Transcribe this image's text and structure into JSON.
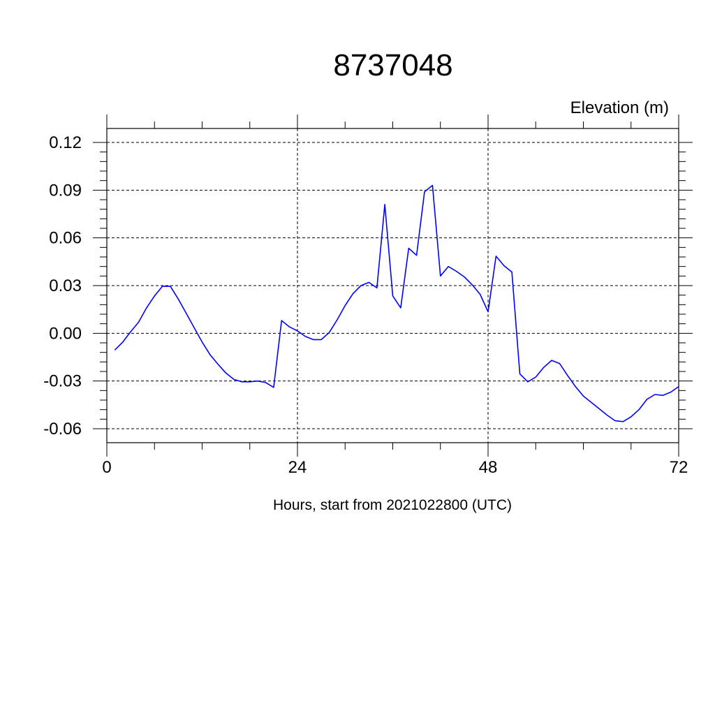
{
  "chart_data": {
    "type": "line",
    "title": "8737048",
    "subtitle": "Elevation (m)",
    "xlabel": "Hours, start from 2021022800 (UTC)",
    "ylabel": "",
    "xlim": [
      0,
      72
    ],
    "ylim": [
      -0.06,
      0.12
    ],
    "x_ticks": [
      0,
      24,
      48,
      72
    ],
    "x_tick_labels": [
      "0",
      "24",
      "48",
      "72"
    ],
    "y_ticks": [
      -0.06,
      -0.03,
      0.0,
      0.03,
      0.06,
      0.09,
      0.12
    ],
    "y_tick_labels": [
      "-0.06",
      "-0.03",
      "0.00",
      "0.03",
      "0.06",
      "0.09",
      "0.12"
    ],
    "grid": true,
    "line_color": "#0000ff",
    "series": [
      {
        "x": [
          1,
          2,
          3,
          4,
          5,
          6,
          7,
          8,
          9,
          10,
          11,
          12,
          13,
          14,
          15,
          16,
          17,
          18,
          19,
          20,
          21,
          22,
          23,
          24,
          25,
          26,
          27,
          28,
          29,
          30,
          31,
          32,
          33,
          34,
          35,
          36,
          37,
          38,
          39,
          40,
          41,
          42,
          43,
          44,
          45,
          46,
          47,
          48,
          49,
          50,
          51,
          52,
          53,
          54,
          55,
          56,
          57,
          58,
          59,
          60,
          61,
          62,
          63,
          64,
          65,
          66,
          67,
          68,
          69,
          70,
          71,
          72
        ],
        "values": [
          -0.0105,
          -0.0055,
          0.001,
          0.007,
          0.016,
          0.0235,
          0.0295,
          0.0295,
          0.0215,
          0.0125,
          0.0035,
          -0.0055,
          -0.0135,
          -0.0195,
          -0.025,
          -0.029,
          -0.0305,
          -0.0305,
          -0.03,
          -0.031,
          -0.034,
          0.008,
          0.004,
          0.0015,
          -0.002,
          -0.004,
          -0.004,
          0.0005,
          0.0085,
          0.0175,
          0.025,
          0.03,
          0.032,
          0.0285,
          0.081,
          0.0235,
          0.016,
          0.0535,
          0.049,
          0.089,
          0.093,
          0.036,
          0.042,
          0.039,
          0.0355,
          0.0305,
          0.0245,
          0.0135,
          0.0485,
          0.0425,
          0.0385,
          -0.0255,
          -0.0305,
          -0.0275,
          -0.0215,
          -0.017,
          -0.019,
          -0.0265,
          -0.0335,
          -0.0395,
          -0.0435,
          -0.0475,
          -0.0515,
          -0.055,
          -0.0555,
          -0.0525,
          -0.048,
          -0.0415,
          -0.0385,
          -0.039,
          -0.037,
          -0.0335
        ]
      }
    ]
  }
}
